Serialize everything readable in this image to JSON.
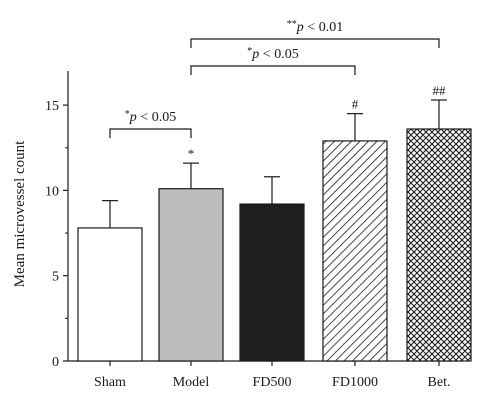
{
  "chart_data": {
    "type": "bar",
    "title": "",
    "xlabel": "",
    "ylabel": "Mean microvessel count",
    "ylim": [
      0,
      17
    ],
    "yticks": [
      0,
      5,
      10,
      15
    ],
    "grid": false,
    "categories": [
      "Sham",
      "Model",
      "FD500",
      "FD1000",
      "Bet."
    ],
    "values": [
      7.8,
      10.1,
      9.2,
      12.9,
      13.6
    ],
    "errors": [
      1.6,
      1.5,
      1.6,
      1.6,
      1.7
    ],
    "fills": [
      "white",
      "light-gray",
      "black",
      "diagonal-hatch",
      "crosshatch"
    ],
    "colors": {
      "white": "#ffffff",
      "light-gray": "#bdbdbd",
      "black": "#1e1e1e",
      "outline": "#1a1a1a"
    },
    "bar_marks": [
      "",
      "*",
      "",
      "#",
      "##"
    ],
    "comparisons": [
      {
        "from": 0,
        "to": 1,
        "label": "*p < 0.05",
        "stars": "*",
        "text": "p < 0.05"
      },
      {
        "from": 1,
        "to": 3,
        "label": "*p < 0.05",
        "stars": "*",
        "text": "p < 0.05"
      },
      {
        "from": 1,
        "to": 4,
        "label": "**p < 0.01",
        "stars": "**",
        "text": "p < 0.01"
      }
    ]
  }
}
